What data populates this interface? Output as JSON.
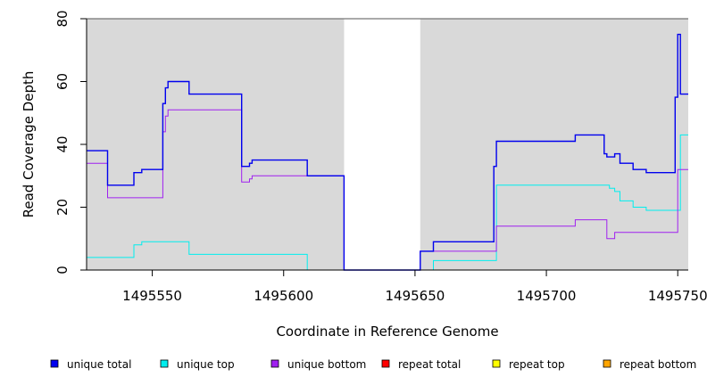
{
  "chart_data": {
    "type": "line",
    "xlabel": "Coordinate in Reference Genome",
    "ylabel": "Read Coverage Depth",
    "xlim": [
      1495525,
      1495754
    ],
    "ylim": [
      0,
      80
    ],
    "x_ticks": [
      1495550,
      1495600,
      1495650,
      1495700,
      1495750
    ],
    "x_tick_labels": [
      "1495550",
      "1495600",
      "1495650",
      "1495700",
      "1495750"
    ],
    "y_ticks": [
      0,
      20,
      40,
      60,
      80
    ],
    "y_tick_labels": [
      "0",
      "20",
      "40",
      "60",
      "80"
    ],
    "shaded_regions": [
      [
        1495525,
        1495623
      ],
      [
        1495652,
        1495754
      ]
    ],
    "shade_color": "#d9d9d9",
    "step": true,
    "series": [
      {
        "name": "unique total",
        "color": "#0000ee",
        "x": [
          1495525,
          1495533,
          1495543,
          1495546,
          1495554,
          1495555,
          1495556,
          1495557,
          1495564,
          1495584,
          1495587,
          1495588,
          1495609,
          1495622,
          1495623,
          1495652,
          1495657,
          1495680,
          1495681,
          1495711,
          1495722,
          1495723,
          1495724,
          1495726,
          1495728,
          1495733,
          1495738,
          1495749,
          1495750,
          1495751,
          1495754
        ],
        "y": [
          38,
          27,
          31,
          32,
          53,
          58,
          60,
          60,
          56,
          33,
          34,
          35,
          30,
          30,
          0,
          6,
          9,
          33,
          41,
          43,
          37,
          36,
          36,
          37,
          34,
          32,
          31,
          55,
          75,
          56,
          56
        ]
      },
      {
        "name": "unique top",
        "color": "#00eeee",
        "x": [
          1495525,
          1495543,
          1495546,
          1495564,
          1495609,
          1495622,
          1495652,
          1495657,
          1495680,
          1495681,
          1495711,
          1495722,
          1495724,
          1495726,
          1495728,
          1495733,
          1495738,
          1495749,
          1495751,
          1495754
        ],
        "y": [
          4,
          8,
          9,
          5,
          0,
          0,
          0,
          3,
          3,
          27,
          27,
          27,
          26,
          25,
          22,
          20,
          19,
          19,
          43,
          43
        ]
      },
      {
        "name": "unique bottom",
        "color": "#a020f0",
        "x": [
          1495525,
          1495533,
          1495554,
          1495555,
          1495556,
          1495557,
          1495584,
          1495587,
          1495588,
          1495609,
          1495622,
          1495623,
          1495652,
          1495657,
          1495680,
          1495681,
          1495711,
          1495722,
          1495723,
          1495724,
          1495726,
          1495738,
          1495749,
          1495750,
          1495754
        ],
        "y": [
          34,
          23,
          44,
          49,
          51,
          51,
          28,
          29,
          30,
          30,
          30,
          0,
          6,
          6,
          6,
          14,
          16,
          16,
          10,
          10,
          12,
          12,
          12,
          32,
          32
        ]
      },
      {
        "name": "repeat total",
        "color": "#ff0000",
        "x": [
          1495525,
          1495754
        ],
        "y": [
          0,
          0
        ]
      },
      {
        "name": "repeat top",
        "color": "#ffff00",
        "x": [
          1495525,
          1495754
        ],
        "y": [
          0,
          0
        ]
      },
      {
        "name": "repeat bottom",
        "color": "#ffa500",
        "x": [
          1495525,
          1495754
        ],
        "y": [
          0,
          0
        ]
      }
    ]
  }
}
